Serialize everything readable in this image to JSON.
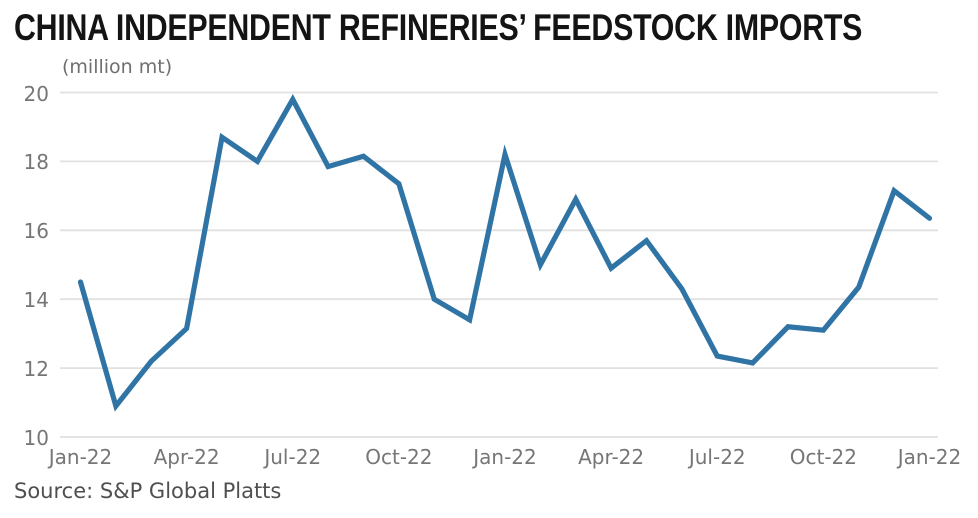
{
  "chart_data": {
    "type": "line",
    "title": "CHINA INDEPENDENT REFINERIES’ FEEDSTOCK IMPORTS",
    "unit_label": "(million mt)",
    "source": "Source: S&P Global Platts",
    "x_tick_labels": [
      "Jan-22",
      "Apr-22",
      "Jul-22",
      "Oct-22",
      "Jan-22",
      "Apr-22",
      "Jul-22",
      "Oct-22",
      "Jan-22"
    ],
    "x_ticks_every_n_points": 3,
    "values": [
      14.5,
      10.9,
      12.2,
      13.15,
      18.7,
      18.0,
      19.8,
      17.85,
      18.15,
      17.35,
      14.0,
      13.4,
      18.2,
      15.0,
      16.9,
      14.9,
      15.7,
      14.3,
      12.35,
      12.15,
      13.2,
      13.1,
      14.35,
      17.15,
      16.35
    ],
    "yticks": [
      10,
      12,
      14,
      16,
      18,
      20
    ],
    "ylim": [
      10,
      20
    ],
    "grid": "horizontal",
    "legend": "none",
    "line_color": "#3074a6",
    "grid_color": "#e1e1e1",
    "axis_text_color": "#767676",
    "unit_text_color": "#6f6f6f",
    "title_color": "#141414",
    "source_color": "#4f4f4f",
    "background_color": "#ffffff"
  }
}
